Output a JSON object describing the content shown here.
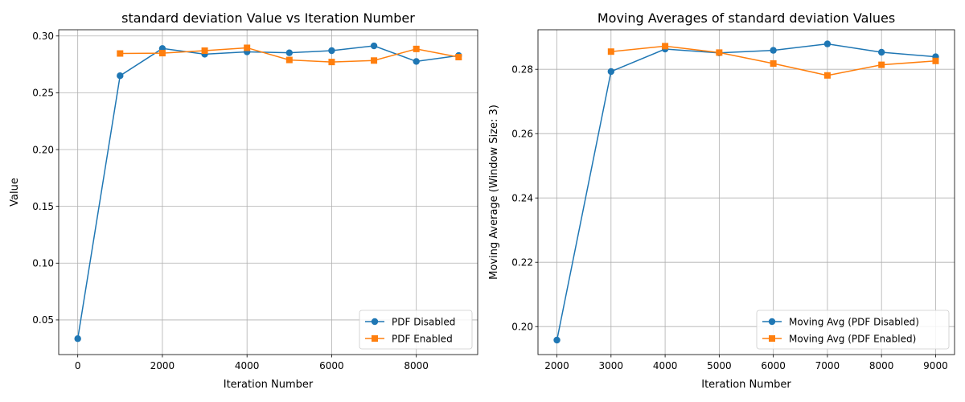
{
  "chart_data": [
    {
      "type": "line",
      "title": "standard deviation Value vs Iteration Number",
      "xlabel": "Iteration Number",
      "ylabel": "Value",
      "xlim": [
        -450,
        9450
      ],
      "ylim": [
        0.0195,
        0.3055
      ],
      "xticks": [
        0,
        2000,
        4000,
        6000,
        8000
      ],
      "xtick_labels": [
        "0",
        "2000",
        "4000",
        "6000",
        "8000"
      ],
      "yticks": [
        0.05,
        0.1,
        0.15,
        0.2,
        0.25,
        0.3
      ],
      "ytick_labels": [
        "0.05",
        "0.10",
        "0.15",
        "0.20",
        "0.25",
        "0.30"
      ],
      "grid": true,
      "legend_loc": "lower-right",
      "series": [
        {
          "name": "PDF Disabled",
          "color": "#1f77b4",
          "marker": "circle",
          "x": [
            0,
            1000,
            2000,
            3000,
            4000,
            5000,
            6000,
            7000,
            8000,
            9000
          ],
          "y": [
            0.0335,
            0.265,
            0.289,
            0.284,
            0.286,
            0.2852,
            0.2871,
            0.2913,
            0.2776,
            0.2828
          ]
        },
        {
          "name": "PDF Enabled",
          "color": "#ff7f0e",
          "marker": "square",
          "x": [
            1000,
            2000,
            3000,
            4000,
            5000,
            6000,
            7000,
            8000,
            9000
          ],
          "y": [
            0.2846,
            0.2849,
            0.2871,
            0.2896,
            0.2789,
            0.2771,
            0.2784,
            0.2886,
            0.2814
          ]
        }
      ]
    },
    {
      "type": "line",
      "title": "Moving Averages of standard deviation Values",
      "xlabel": "Iteration Number",
      "ylabel": "Moving Average (Window Size: 3)",
      "xlim": [
        1650,
        9350
      ],
      "ylim": [
        0.1913,
        0.2923
      ],
      "xticks": [
        2000,
        3000,
        4000,
        5000,
        6000,
        7000,
        8000,
        9000
      ],
      "xtick_labels": [
        "2000",
        "3000",
        "4000",
        "5000",
        "6000",
        "7000",
        "8000",
        "9000"
      ],
      "yticks": [
        0.2,
        0.22,
        0.24,
        0.26,
        0.28
      ],
      "ytick_labels": [
        "0.20",
        "0.22",
        "0.24",
        "0.26",
        "0.28"
      ],
      "grid": true,
      "legend_loc": "lower-right",
      "series": [
        {
          "name": "Moving Avg (PDF Disabled)",
          "color": "#1f77b4",
          "marker": "circle",
          "x": [
            2000,
            3000,
            4000,
            5000,
            6000,
            7000,
            8000,
            9000
          ],
          "y": [
            0.1958,
            0.2793,
            0.2863,
            0.2851,
            0.2859,
            0.2879,
            0.2853,
            0.2839
          ]
        },
        {
          "name": "Moving Avg (PDF Enabled)",
          "color": "#ff7f0e",
          "marker": "square",
          "x": [
            3000,
            4000,
            5000,
            6000,
            7000,
            8000,
            9000
          ],
          "y": [
            0.2855,
            0.2872,
            0.2852,
            0.2818,
            0.2781,
            0.2814,
            0.2826
          ]
        }
      ]
    }
  ]
}
